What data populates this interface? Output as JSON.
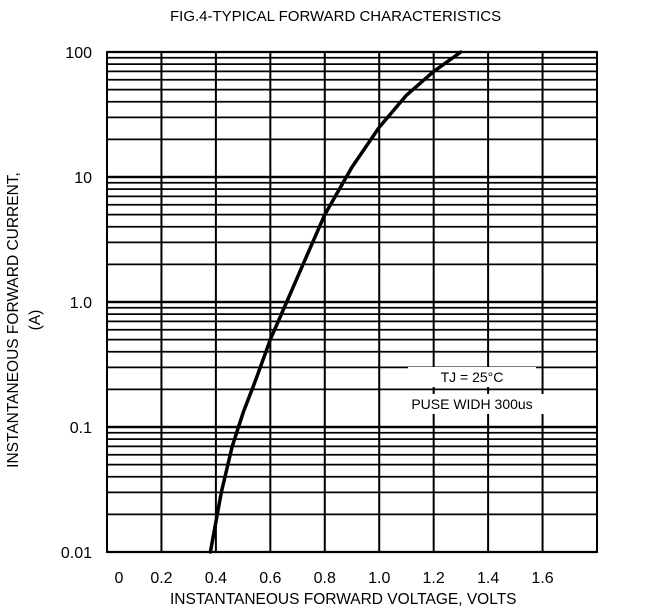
{
  "chart_data": {
    "type": "line",
    "title": "FIG.4-TYPICAL FORWARD CHARACTERISTICS",
    "xlabel": "INSTANTANEOUS FORWARD VOLTAGE, VOLTS",
    "ylabel_line1": "INSTANTANEOUS FORWARD CURRENT,",
    "ylabel_line2": "(A)",
    "x_ticks": [
      "0",
      "0.2",
      "0.4",
      "0.6",
      "0.8",
      "1.0",
      "1.2",
      "1.4",
      "1.6"
    ],
    "y_ticks": [
      "0.01",
      "0.1",
      "1.0",
      "10",
      "100"
    ],
    "xlim": [
      0,
      1.8
    ],
    "ylim": [
      0.01,
      100
    ],
    "y_scale": "log",
    "grid": true,
    "annotation_line1": "TJ = 25°C",
    "annotation_line2": "PUSE WIDH 300us",
    "series": [
      {
        "x": [
          0.38,
          0.42,
          0.46,
          0.5,
          0.55,
          0.6,
          0.66,
          0.72,
          0.8,
          0.9,
          1.0,
          1.1,
          1.2,
          1.3
        ],
        "y": [
          0.01,
          0.03,
          0.07,
          0.13,
          0.25,
          0.5,
          1.0,
          2.0,
          5.0,
          12.0,
          25.0,
          45.0,
          70.0,
          100.0
        ]
      }
    ]
  }
}
